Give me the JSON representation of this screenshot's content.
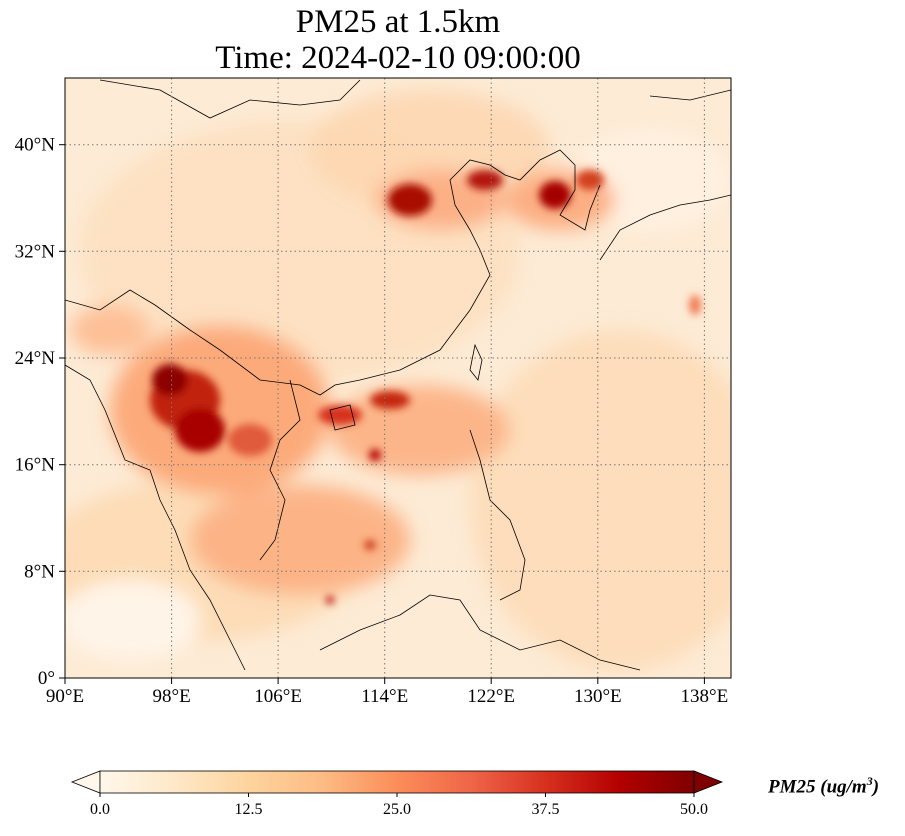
{
  "title": {
    "line1": "PM25 at 1.5km",
    "line2": "Time: 2024-02-10 09:00:00"
  },
  "map": {
    "lon_range": [
      90,
      140
    ],
    "lat_range": [
      0,
      45
    ],
    "x_ticks": [
      "90°E",
      "98°E",
      "106°E",
      "114°E",
      "122°E",
      "130°E",
      "138°E"
    ],
    "y_ticks": [
      "0°",
      "8°N",
      "16°N",
      "24°N",
      "32°N",
      "40°N"
    ],
    "gridlines": true,
    "colormap": "OrRd"
  },
  "colorbar": {
    "ticks": [
      "0.0",
      "12.5",
      "25.0",
      "37.5",
      "50.0"
    ],
    "label_prefix": "PM25 (ug/m",
    "label_exp": "3",
    "label_suffix": ")",
    "extend": "both",
    "colors": [
      "#fff7ec",
      "#fee8c8",
      "#fdd49e",
      "#fdbb84",
      "#fc8d59",
      "#ef6548",
      "#d7301f",
      "#b30000",
      "#7f0000"
    ]
  }
}
